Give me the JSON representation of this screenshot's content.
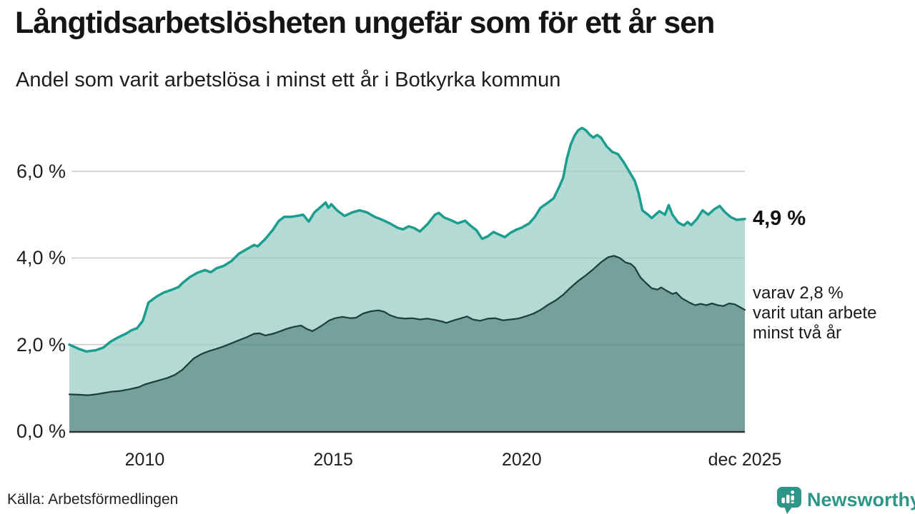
{
  "chart_data": {
    "type": "area",
    "title": "Långtidsarbetslösheten ungefär som för ett år sen",
    "subtitle": "Andel som varit arbetslösa i minst ett år i Botkyrka kommun",
    "x_domain": [
      2008.0,
      2025.92
    ],
    "y_domain": [
      0,
      7.3
    ],
    "grid": true,
    "legend_position": "none",
    "y_ticks": [
      {
        "value": 0,
        "label": "0,0 %"
      },
      {
        "value": 2,
        "label": "2,0 %"
      },
      {
        "value": 4,
        "label": "4,0 %"
      },
      {
        "value": 6,
        "label": "6,0 %"
      }
    ],
    "x_ticks": [
      {
        "value": 2010,
        "label": "2010"
      },
      {
        "value": 2015,
        "label": "2015"
      },
      {
        "value": 2020,
        "label": "2020"
      },
      {
        "value": 2025.92,
        "label": "dec 2025"
      }
    ],
    "colors": {
      "line_one_year": "#1b9e8f",
      "fill_one_year": "#b4dad4",
      "line_two_years": "#1e403d",
      "fill_two_years": "#74a19b",
      "gridline": "#d9d9d9",
      "axis_line": "#333333"
    },
    "series": [
      {
        "name": "Andel arbetslösa minst ett år",
        "color": "#1b9e8f",
        "fill": "#b4dad4",
        "points": [
          [
            2008.0,
            2.0
          ],
          [
            2008.25,
            1.9
          ],
          [
            2008.45,
            1.84
          ],
          [
            2008.7,
            1.87
          ],
          [
            2008.9,
            1.93
          ],
          [
            2009.1,
            2.07
          ],
          [
            2009.3,
            2.17
          ],
          [
            2009.5,
            2.25
          ],
          [
            2009.65,
            2.33
          ],
          [
            2009.8,
            2.38
          ],
          [
            2009.95,
            2.55
          ],
          [
            2010.1,
            2.97
          ],
          [
            2010.3,
            3.1
          ],
          [
            2010.5,
            3.2
          ],
          [
            2010.7,
            3.26
          ],
          [
            2010.9,
            3.33
          ],
          [
            2011.0,
            3.42
          ],
          [
            2011.2,
            3.56
          ],
          [
            2011.4,
            3.66
          ],
          [
            2011.6,
            3.72
          ],
          [
            2011.75,
            3.67
          ],
          [
            2011.9,
            3.76
          ],
          [
            2012.1,
            3.82
          ],
          [
            2012.3,
            3.93
          ],
          [
            2012.5,
            4.1
          ],
          [
            2012.7,
            4.2
          ],
          [
            2012.9,
            4.3
          ],
          [
            2013.0,
            4.27
          ],
          [
            2013.2,
            4.44
          ],
          [
            2013.4,
            4.65
          ],
          [
            2013.55,
            4.85
          ],
          [
            2013.7,
            4.95
          ],
          [
            2013.9,
            4.95
          ],
          [
            2014.1,
            4.98
          ],
          [
            2014.2,
            5.0
          ],
          [
            2014.35,
            4.84
          ],
          [
            2014.5,
            5.05
          ],
          [
            2014.7,
            5.2
          ],
          [
            2014.8,
            5.28
          ],
          [
            2014.87,
            5.16
          ],
          [
            2014.95,
            5.24
          ],
          [
            2015.1,
            5.1
          ],
          [
            2015.3,
            4.97
          ],
          [
            2015.5,
            5.05
          ],
          [
            2015.7,
            5.1
          ],
          [
            2015.9,
            5.05
          ],
          [
            2016.1,
            4.95
          ],
          [
            2016.3,
            4.88
          ],
          [
            2016.5,
            4.8
          ],
          [
            2016.7,
            4.7
          ],
          [
            2016.85,
            4.66
          ],
          [
            2017.0,
            4.73
          ],
          [
            2017.15,
            4.69
          ],
          [
            2017.3,
            4.61
          ],
          [
            2017.5,
            4.78
          ],
          [
            2017.7,
            5.0
          ],
          [
            2017.8,
            5.04
          ],
          [
            2017.95,
            4.93
          ],
          [
            2018.1,
            4.88
          ],
          [
            2018.3,
            4.8
          ],
          [
            2018.5,
            4.86
          ],
          [
            2018.65,
            4.74
          ],
          [
            2018.8,
            4.64
          ],
          [
            2018.95,
            4.44
          ],
          [
            2019.1,
            4.5
          ],
          [
            2019.25,
            4.6
          ],
          [
            2019.4,
            4.54
          ],
          [
            2019.55,
            4.48
          ],
          [
            2019.7,
            4.58
          ],
          [
            2019.85,
            4.65
          ],
          [
            2020.0,
            4.7
          ],
          [
            2020.2,
            4.8
          ],
          [
            2020.35,
            4.95
          ],
          [
            2020.5,
            5.16
          ],
          [
            2020.7,
            5.28
          ],
          [
            2020.85,
            5.38
          ],
          [
            2021.0,
            5.65
          ],
          [
            2021.1,
            5.85
          ],
          [
            2021.2,
            6.3
          ],
          [
            2021.3,
            6.62
          ],
          [
            2021.4,
            6.82
          ],
          [
            2021.5,
            6.95
          ],
          [
            2021.6,
            7.0
          ],
          [
            2021.7,
            6.95
          ],
          [
            2021.8,
            6.85
          ],
          [
            2021.9,
            6.78
          ],
          [
            2022.0,
            6.84
          ],
          [
            2022.1,
            6.78
          ],
          [
            2022.25,
            6.58
          ],
          [
            2022.4,
            6.45
          ],
          [
            2022.55,
            6.4
          ],
          [
            2022.7,
            6.22
          ],
          [
            2022.85,
            6.0
          ],
          [
            2023.0,
            5.78
          ],
          [
            2023.1,
            5.5
          ],
          [
            2023.2,
            5.1
          ],
          [
            2023.35,
            5.0
          ],
          [
            2023.45,
            4.92
          ],
          [
            2023.55,
            5.0
          ],
          [
            2023.65,
            5.08
          ],
          [
            2023.8,
            5.0
          ],
          [
            2023.9,
            5.22
          ],
          [
            2024.0,
            5.0
          ],
          [
            2024.15,
            4.82
          ],
          [
            2024.3,
            4.75
          ],
          [
            2024.4,
            4.83
          ],
          [
            2024.5,
            4.76
          ],
          [
            2024.65,
            4.9
          ],
          [
            2024.8,
            5.1
          ],
          [
            2024.95,
            5.0
          ],
          [
            2025.1,
            5.12
          ],
          [
            2025.25,
            5.2
          ],
          [
            2025.4,
            5.05
          ],
          [
            2025.55,
            4.94
          ],
          [
            2025.7,
            4.88
          ],
          [
            2025.92,
            4.9
          ]
        ]
      },
      {
        "name": "Varav utan arbete minst två år",
        "color": "#1e403d",
        "fill": "#74a19b",
        "points": [
          [
            2008.0,
            0.85
          ],
          [
            2008.3,
            0.84
          ],
          [
            2008.5,
            0.83
          ],
          [
            2008.7,
            0.85
          ],
          [
            2008.9,
            0.88
          ],
          [
            2009.1,
            0.91
          ],
          [
            2009.35,
            0.93
          ],
          [
            2009.6,
            0.97
          ],
          [
            2009.85,
            1.02
          ],
          [
            2010.0,
            1.08
          ],
          [
            2010.2,
            1.13
          ],
          [
            2010.4,
            1.18
          ],
          [
            2010.6,
            1.23
          ],
          [
            2010.8,
            1.3
          ],
          [
            2011.0,
            1.42
          ],
          [
            2011.15,
            1.55
          ],
          [
            2011.3,
            1.68
          ],
          [
            2011.5,
            1.78
          ],
          [
            2011.7,
            1.85
          ],
          [
            2011.9,
            1.9
          ],
          [
            2012.1,
            1.96
          ],
          [
            2012.3,
            2.03
          ],
          [
            2012.5,
            2.1
          ],
          [
            2012.7,
            2.17
          ],
          [
            2012.9,
            2.25
          ],
          [
            2013.05,
            2.26
          ],
          [
            2013.2,
            2.21
          ],
          [
            2013.4,
            2.25
          ],
          [
            2013.6,
            2.31
          ],
          [
            2013.75,
            2.36
          ],
          [
            2013.95,
            2.41
          ],
          [
            2014.15,
            2.44
          ],
          [
            2014.3,
            2.36
          ],
          [
            2014.45,
            2.31
          ],
          [
            2014.55,
            2.36
          ],
          [
            2014.7,
            2.44
          ],
          [
            2014.9,
            2.56
          ],
          [
            2015.05,
            2.61
          ],
          [
            2015.25,
            2.64
          ],
          [
            2015.45,
            2.61
          ],
          [
            2015.6,
            2.62
          ],
          [
            2015.8,
            2.72
          ],
          [
            2016.0,
            2.77
          ],
          [
            2016.2,
            2.79
          ],
          [
            2016.35,
            2.76
          ],
          [
            2016.5,
            2.68
          ],
          [
            2016.7,
            2.62
          ],
          [
            2016.9,
            2.6
          ],
          [
            2017.1,
            2.61
          ],
          [
            2017.3,
            2.58
          ],
          [
            2017.5,
            2.6
          ],
          [
            2017.7,
            2.57
          ],
          [
            2017.9,
            2.53
          ],
          [
            2018.0,
            2.5
          ],
          [
            2018.2,
            2.56
          ],
          [
            2018.4,
            2.61
          ],
          [
            2018.55,
            2.65
          ],
          [
            2018.7,
            2.58
          ],
          [
            2018.9,
            2.55
          ],
          [
            2019.1,
            2.6
          ],
          [
            2019.3,
            2.61
          ],
          [
            2019.5,
            2.56
          ],
          [
            2019.7,
            2.58
          ],
          [
            2019.9,
            2.6
          ],
          [
            2020.1,
            2.65
          ],
          [
            2020.3,
            2.71
          ],
          [
            2020.5,
            2.8
          ],
          [
            2020.7,
            2.92
          ],
          [
            2020.9,
            3.02
          ],
          [
            2021.1,
            3.15
          ],
          [
            2021.3,
            3.32
          ],
          [
            2021.5,
            3.47
          ],
          [
            2021.7,
            3.6
          ],
          [
            2021.9,
            3.74
          ],
          [
            2022.1,
            3.9
          ],
          [
            2022.3,
            4.02
          ],
          [
            2022.45,
            4.05
          ],
          [
            2022.6,
            4.0
          ],
          [
            2022.75,
            3.9
          ],
          [
            2022.9,
            3.86
          ],
          [
            2023.0,
            3.78
          ],
          [
            2023.15,
            3.55
          ],
          [
            2023.3,
            3.42
          ],
          [
            2023.45,
            3.3
          ],
          [
            2023.6,
            3.27
          ],
          [
            2023.7,
            3.32
          ],
          [
            2023.85,
            3.24
          ],
          [
            2024.0,
            3.17
          ],
          [
            2024.1,
            3.2
          ],
          [
            2024.25,
            3.07
          ],
          [
            2024.45,
            2.97
          ],
          [
            2024.6,
            2.91
          ],
          [
            2024.75,
            2.94
          ],
          [
            2024.9,
            2.91
          ],
          [
            2025.05,
            2.95
          ],
          [
            2025.2,
            2.91
          ],
          [
            2025.35,
            2.89
          ],
          [
            2025.5,
            2.95
          ],
          [
            2025.65,
            2.93
          ],
          [
            2025.8,
            2.86
          ],
          [
            2025.92,
            2.8
          ]
        ]
      }
    ],
    "annotations": {
      "end_value_label": "4,9 %",
      "note_lines": [
        "varav 2,8 %",
        "varit utan arbete",
        "minst två år"
      ]
    },
    "latest": {
      "x_label": "dec 2025",
      "one_year_pct": 4.9,
      "two_year_pct": 2.8
    }
  },
  "footer": {
    "source": "Källa: Arbetsförmedlingen",
    "logo_text": "Newsworthy",
    "logo_color": "#2e9689"
  }
}
